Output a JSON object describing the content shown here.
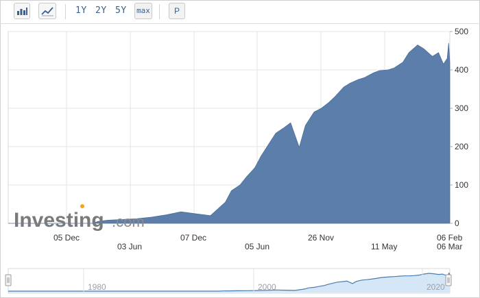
{
  "toolbar": {
    "bar_chart_icon": "bar-chart-icon",
    "line_chart_icon": "line-chart-icon",
    "range_1y": "1Y",
    "range_2y": "2Y",
    "range_5y": "5Y",
    "range_max": "max",
    "range_p": "P"
  },
  "watermark": {
    "brand": "Investing",
    "suffix": ".com"
  },
  "colors": {
    "area_fill": "#5b7faa",
    "grid": "#e6e6e6",
    "navigator_fill": "#d5e6f7",
    "navigator_line": "#4a7cb0"
  },
  "chart_data": {
    "type": "area",
    "ylim": [
      0,
      500
    ],
    "y_ticks": [
      "500",
      "400",
      "300",
      "200",
      "100",
      "0"
    ],
    "x_ticks_row1": [
      "05 Dec",
      "07 Dec",
      "26 Nov",
      "06 Feb"
    ],
    "x_ticks_row2": [
      "03 Jun",
      "05 Jun",
      "11 May",
      "06 Mar"
    ],
    "x_range": [
      "1990-05-01",
      "2020-03-06"
    ],
    "series": [
      {
        "x": [
          "1990-05-01",
          "1996-01-01",
          "1996-06-01",
          "1997-01-01",
          "1998-01-01",
          "1999-01-01",
          "2000-01-01",
          "2001-01-01",
          "2002-01-01",
          "2003-01-01",
          "2004-01-01",
          "2005-01-01",
          "2005-06-01",
          "2006-01-01",
          "2006-06-01",
          "2007-01-01",
          "2007-06-01",
          "2008-01-01",
          "2008-06-01",
          "2009-01-01",
          "2009-06-01",
          "2010-01-01",
          "2010-06-01",
          "2011-01-01",
          "2011-07-01",
          "2012-01-01",
          "2012-06-01",
          "2013-01-01",
          "2013-06-01",
          "2014-01-01",
          "2014-06-01",
          "2015-01-01",
          "2015-06-01",
          "2016-01-01",
          "2016-06-01",
          "2017-01-01",
          "2017-06-01",
          "2018-01-01",
          "2018-06-01",
          "2019-01-01",
          "2019-06-01",
          "2019-10-01",
          "2020-01-01",
          "2020-02-06",
          "2020-03-06"
        ],
        "values": [
          0,
          0,
          5,
          8,
          10,
          12,
          16,
          22,
          30,
          25,
          20,
          55,
          85,
          100,
          120,
          145,
          175,
          210,
          235,
          250,
          262,
          198,
          255,
          290,
          300,
          315,
          330,
          355,
          365,
          375,
          380,
          392,
          398,
          400,
          405,
          420,
          445,
          465,
          455,
          435,
          445,
          415,
          430,
          470,
          418
        ]
      }
    ]
  },
  "navigator": {
    "ticks": [
      "1980",
      "2000",
      "2020"
    ]
  }
}
